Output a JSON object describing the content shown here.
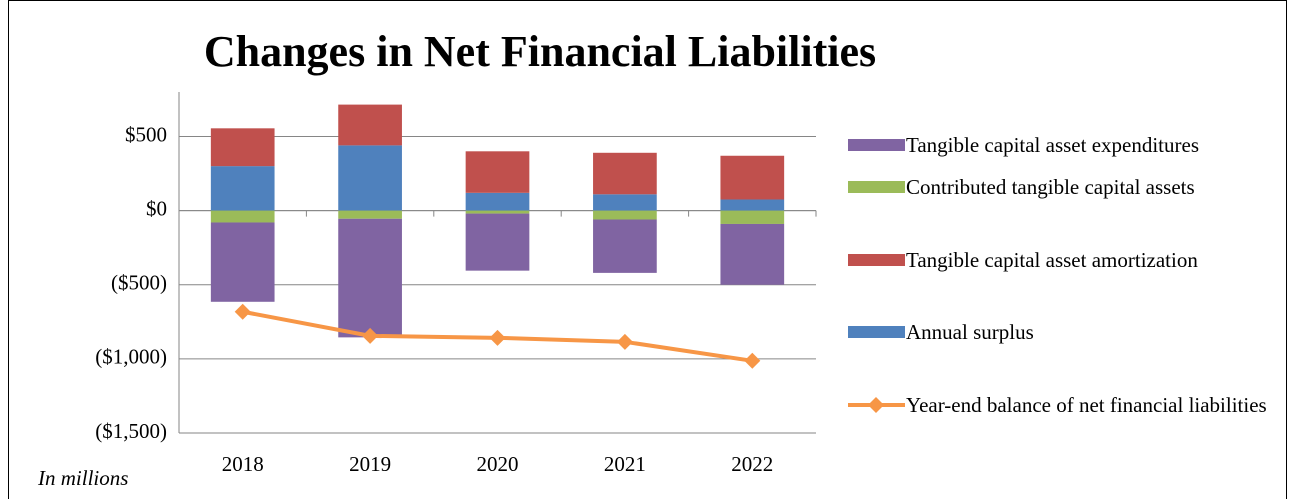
{
  "chart_data": {
    "type": "bar",
    "title": "Changes in Net Financial Liabilities",
    "note": "In millions",
    "categories": [
      "2018",
      "2019",
      "2020",
      "2021",
      "2022"
    ],
    "series": [
      {
        "name": "Tangible capital asset expenditures",
        "color": "#8064a2",
        "values": [
          -535,
          -800,
          -385,
          -360,
          -410
        ]
      },
      {
        "name": "Contributed tangible capital assets",
        "color": "#9bbb59",
        "values": [
          -80,
          -55,
          -20,
          -60,
          -90
        ]
      },
      {
        "name": "Tangible capital asset amortization",
        "color": "#c0504d",
        "values": [
          255,
          275,
          280,
          280,
          295
        ]
      },
      {
        "name": "Annual surplus",
        "color": "#4f81bd",
        "values": [
          300,
          440,
          120,
          110,
          75
        ]
      },
      {
        "name": "Year-end balance of net financial liabilities",
        "color": "#f79646",
        "type": "line",
        "values": [
          -682,
          -845,
          -858,
          -885,
          -1013
        ]
      }
    ],
    "ylim": [
      -1500,
      800
    ],
    "yticks": [
      {
        "value": -1500,
        "label": "($1,500)"
      },
      {
        "value": -1000,
        "label": "($1,000)"
      },
      {
        "value": -500,
        "label": "($500)"
      },
      {
        "value": 0,
        "label": "$0"
      },
      {
        "value": 500,
        "label": "$500"
      }
    ],
    "grid": true,
    "legend": "right"
  }
}
